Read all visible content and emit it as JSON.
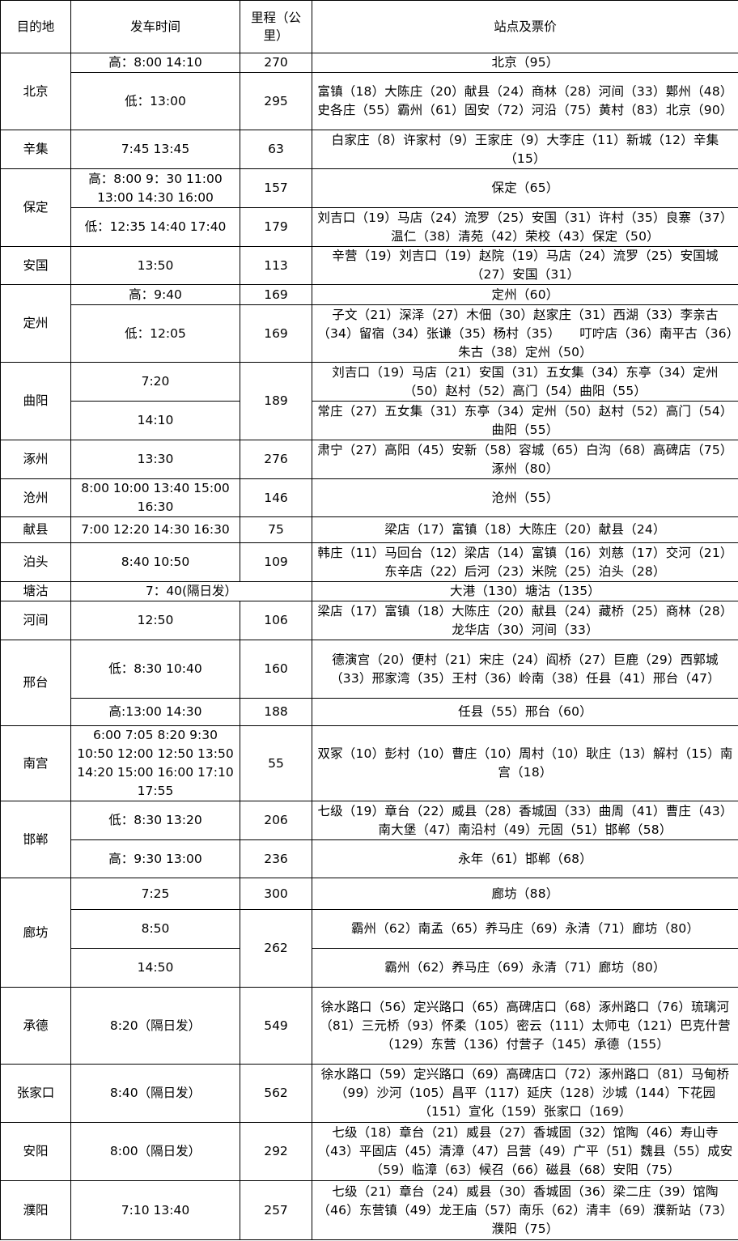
{
  "header": {
    "dest": "目的地",
    "time": "发车时间",
    "km": "里程（公里）",
    "stops": "站点及票价"
  },
  "groups": [
    {
      "dest": "北京",
      "rows": [
        {
          "time": "高：8:00 14:10",
          "km": "270",
          "stops": "北京（95）"
        },
        {
          "time": "低：13:00",
          "km": "295",
          "stops": "富镇（18）大陈庄（20）献县（24）商林（28）河间（33）鄚州（48）史各庄（55）霸州（61）固安（72）河沿（75）黄村（83）北京（90）"
        }
      ]
    },
    {
      "dest": "辛集",
      "rows": [
        {
          "time": "7:45 13:45",
          "km": "63",
          "stops": "白家庄（8）许家村（9）王家庄（9）大李庄（11）新城（12）辛集（15）"
        }
      ]
    },
    {
      "dest": "保定",
      "rows": [
        {
          "time": "高：8:00 9：30 11:00 13:00 14:30 16:00",
          "km": "157",
          "stops": "保定（65）"
        },
        {
          "time": "低：12:35 14:40 17:40",
          "km": "179",
          "stops": "刘吉口（19）马店（24）流罗（25）安国（31）许村（35）良寨（37）温仁（38）清苑（42）荣校（43）保定（50）"
        }
      ]
    },
    {
      "dest": "安国",
      "rows": [
        {
          "time": "13:50",
          "km": "113",
          "stops": "辛营（19）刘吉口（19）赵院（19）马店（24）流罗（25）安国城（27）安国（31）"
        }
      ]
    },
    {
      "dest": "定州",
      "rows": [
        {
          "time": "高：9:40",
          "km": "169",
          "stops": "定州（60）"
        },
        {
          "time": "低：12:05",
          "km": "169",
          "stops": "子文（21）深泽（27）木佃（30）赵家庄（31）西湖（33）李亲古（34）留宿（34）张谦（35）杨村（35）　　叮咛店（36）南平古（36）朱古（38）定州（50）"
        }
      ]
    },
    {
      "dest": "曲阳",
      "rows": [
        {
          "time": "7:20",
          "km": "189",
          "stops": "刘吉口（19）马店（21）安国（31）五女集（34）东亭（34）定州（50）赵村（52）高门（54）曲阳（55）"
        },
        {
          "time": "14:10",
          "km": null,
          "stops": "常庄（27）五女集（31）东亭（34）定州（50）赵村（52）高门（54）曲阳（55）"
        }
      ]
    },
    {
      "dest": "涿州",
      "rows": [
        {
          "time": "13:30",
          "km": "276",
          "stops": "肃宁（27）高阳（45）安新（58）容城（65）白沟（68）高碑店（75）涿州（80）"
        }
      ]
    },
    {
      "dest": "沧州",
      "rows": [
        {
          "time": "8:00 10:00 13:40 15:00 16:30",
          "km": "146",
          "stops": "沧州（55）"
        }
      ]
    },
    {
      "dest": "献县",
      "rows": [
        {
          "time": "7:00 12:20 14:30 16:30",
          "km": "75",
          "stops": "梁店（17）富镇（18）大陈庄（20）献县（24）"
        }
      ]
    },
    {
      "dest": "泊头",
      "rows": [
        {
          "time": "8:40 10:50",
          "km": "109",
          "stops": "韩庄（11）马回台（12）梁店（14）富镇（16）刘慈（17）交河（21）东辛店（22）后河（23）米院（25）泊头（28）"
        }
      ]
    },
    {
      "dest": "塘沽",
      "rows": [
        {
          "time": "7：40(隔日发）",
          "km": null,
          "stops": "大港（130）塘沽（135）"
        }
      ]
    },
    {
      "dest": "河间",
      "rows": [
        {
          "time": "12:50",
          "km": "106",
          "stops": "梁店（17）富镇（18）大陈庄（20）献县（24）藏桥（25）商林（28）龙华店（30）河间（33）"
        }
      ]
    },
    {
      "dest": "邢台",
      "rows": [
        {
          "time": "低：8:30 10:40",
          "km": "160",
          "stops": "德演宫（20）便村（21）宋庄（24）阎桥（27）巨鹿（29）西郭城（33）邢家湾（35）王村（36）岭南（38）任县（41）邢台（47）"
        },
        {
          "time": "高:13:00 14:30",
          "km": "188",
          "stops": "任县（55）邢台（60）"
        }
      ]
    },
    {
      "dest": "南宫",
      "rows": [
        {
          "time": "6:00 7:05 8:20 9:30 10:50 12:00 12:50 13:50 14:20 15:00 16:00 17:10 17:55",
          "km": "55",
          "stops": "双冢（10）彭村（10）曹庄（10）周村（10）耿庄（13）解村（15）南宫（18）"
        }
      ]
    },
    {
      "dest": "邯郸",
      "rows": [
        {
          "time": "低：8:30 13:20",
          "km": "206",
          "stops": "七级（19）章台（22）威县（28）香城固（33）曲周（41）曹庄（43）南大堡（47）南沿村（49）元固（51）邯郸（58）"
        },
        {
          "time": "高：9:30 13:00",
          "km": "236",
          "stops": "永年（61）邯郸（68）"
        }
      ]
    },
    {
      "dest": "廊坊",
      "rows": [
        {
          "time": "7:25",
          "km": "300",
          "stops": "廊坊（88）"
        },
        {
          "time": "8:50",
          "km": "262",
          "stops": "霸州（62）南孟（65）养马庄（69）永清（71）廊坊（80）"
        },
        {
          "time": "14:50",
          "km": null,
          "stops": "霸州（62）养马庄（69）永清（71）廊坊（80）"
        }
      ]
    },
    {
      "dest": "承德",
      "rows": [
        {
          "time": "8:20（隔日发）",
          "km": "549",
          "stops": "徐水路口（56）定兴路口（65）高碑店口（68）涿州路口（76）琉璃河（81）三元桥（93）怀柔（105）密云（111）太师屯（121）巴克什营（129）东营（136）付营子（145）承德（155）"
        }
      ]
    },
    {
      "dest": "张家口",
      "rows": [
        {
          "time": "8:40（隔日发）",
          "km": "562",
          "stops": "徐水路口（59）定兴路口（69）高碑店口（72）涿州路口（81）马甸桥（99）沙河（105）昌平（117）延庆（128）沙城（144）下花园（151）宣化（159）张家口（169）"
        }
      ]
    },
    {
      "dest": "安阳",
      "rows": [
        {
          "time": "8:00（隔日发）",
          "km": "292",
          "stops": "七级（18）章台（21）威县（27）香城固（32）馆陶（46）寿山寺（43）平固店（45）清漳（47）吕营（49）广平（51）魏县（55）成安（59）临漳（63）候召（66）磁县（68）安阳（75）"
        }
      ]
    },
    {
      "dest": "濮阳",
      "rows": [
        {
          "time": "7:10 13:40",
          "km": "257",
          "stops": "七级（21）章台（24）威县（30）香城固（36）梁二庄（39）馆陶（46）东营镇（49）龙王庙（57）南乐（62）清丰（69）濮新站（73）濮阳（75）"
        }
      ]
    }
  ]
}
